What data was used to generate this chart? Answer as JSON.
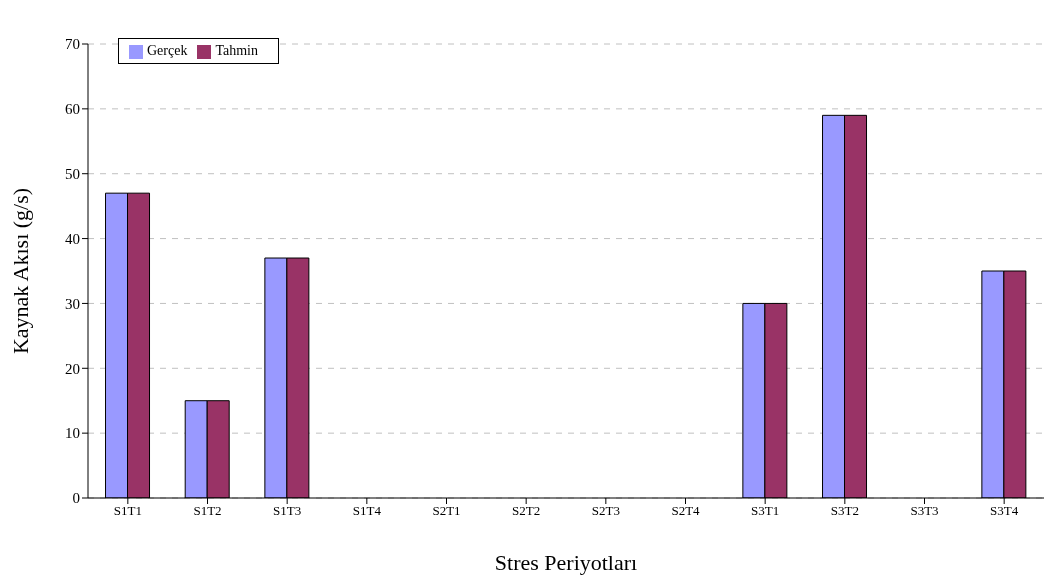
{
  "chart_data": {
    "type": "bar",
    "xlabel": "Stres Periyotları",
    "ylabel": "Kaynak Akısı (g/s)",
    "categories": [
      "S1T1",
      "S1T2",
      "S1T3",
      "S1T4",
      "S2T1",
      "S2T2",
      "S2T3",
      "S2T4",
      "S3T1",
      "S3T2",
      "S3T3",
      "S3T4"
    ],
    "series": [
      {
        "name": "Gerçek",
        "color": "#9999ff",
        "values": [
          47,
          15,
          37,
          0,
          0,
          0,
          0,
          0,
          30,
          59,
          0,
          35
        ]
      },
      {
        "name": "Tahmin",
        "color": "#993366",
        "values": [
          47,
          15,
          37,
          0,
          0,
          0,
          0,
          0,
          30,
          59,
          0,
          35
        ]
      }
    ],
    "ylim": [
      0,
      70
    ],
    "yticks": [
      0,
      10,
      20,
      30,
      40,
      50,
      60,
      70
    ],
    "grid": "y",
    "legend": "top left"
  }
}
